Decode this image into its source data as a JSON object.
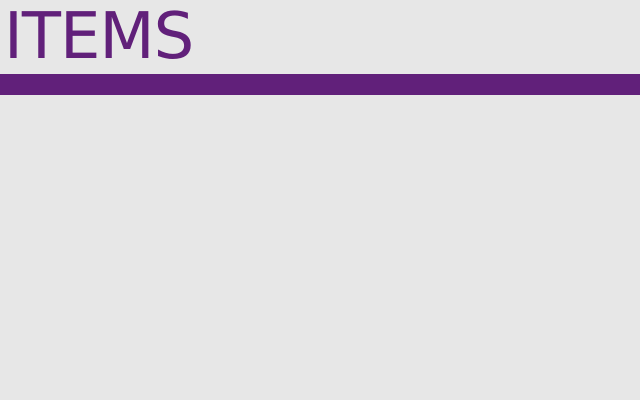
{
  "header": {
    "title": "ITEMS"
  },
  "colors": {
    "accent": "#61207a",
    "background": "#e7e7e7"
  },
  "items": []
}
